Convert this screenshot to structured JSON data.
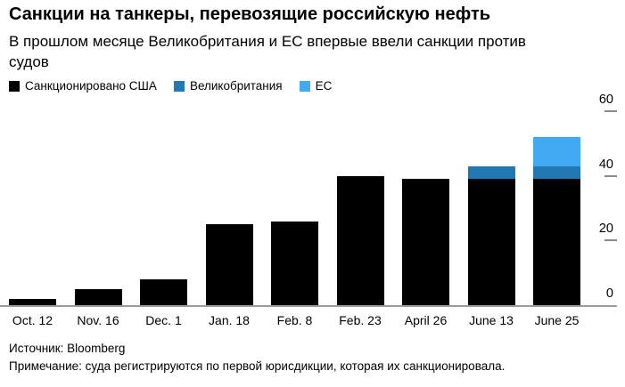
{
  "header": {
    "title": "Санкции на танкеры, перевозящие российскую нефть",
    "subtitle": "В прошлом месяце Великобритания и ЕС впервые ввели санкции против судов"
  },
  "chart_data": {
    "type": "bar",
    "stacked": true,
    "title": "Санкции на танкеры, перевозящие российскую нефть",
    "xlabel": "",
    "ylabel": "",
    "categories": [
      "Oct. 12",
      "Nov. 16",
      "Dec. 1",
      "Jan. 18",
      "Feb. 8",
      "Feb. 23",
      "April 26",
      "June 13",
      "June 25"
    ],
    "series": [
      {
        "name": "Санкционировано США",
        "color": "#000000",
        "values": [
          2,
          5,
          8,
          25,
          26,
          40,
          39,
          39,
          39
        ]
      },
      {
        "name": "Великобритания",
        "color": "#2278b0",
        "values": [
          0,
          0,
          0,
          0,
          0,
          0,
          0,
          4,
          4
        ]
      },
      {
        "name": "ЕС",
        "color": "#42aaf2",
        "values": [
          0,
          0,
          0,
          0,
          0,
          0,
          0,
          0,
          9
        ]
      }
    ],
    "ylim": [
      0,
      60
    ],
    "yticks": [
      0,
      20,
      40,
      60
    ],
    "grid": false,
    "legend_position": "top-left",
    "y_axis_side": "right"
  },
  "footer": {
    "source": "Источник: Bloomberg",
    "note": "Примечание: суда регистрируются по первой юрисдикции, которая их санкционировала."
  },
  "colors": {
    "background": "#ffffff",
    "axis_line": "#9b9b9b",
    "tick": "#8a8a8a",
    "text": "#000000"
  }
}
